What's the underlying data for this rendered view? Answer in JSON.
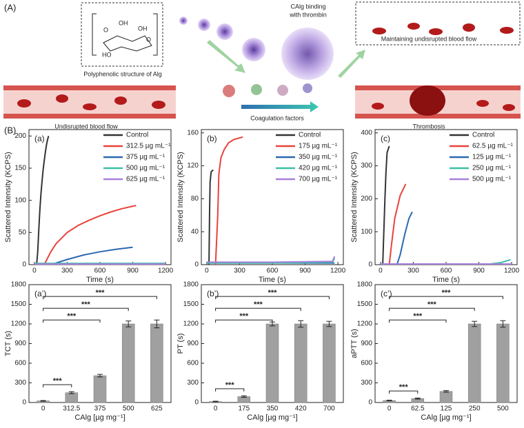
{
  "figure": {
    "panel_a": {
      "label": "(A)",
      "structure_atoms": [
        "O",
        "OH",
        "OH",
        "HO",
        "O"
      ],
      "structure_caption": "Polyphenolic structure of Alg",
      "left_vessel_caption": "Undisrupted blood flow",
      "binding_caption": [
        "CAlg binding",
        "with thrombin"
      ],
      "maintaining_caption": "Maintaining undisrupted blood flow",
      "coagulation_caption": "Coagulation factors",
      "thrombosis_caption": "Thrombosis"
    },
    "panel_b_label": "(B)"
  },
  "chart_data": [
    {
      "type": "line",
      "panel_label": "(a)",
      "x_label": "Time (s)",
      "y_label": "Scattered Intensity (KCPS)",
      "xlim": [
        -50,
        1250
      ],
      "xticks": [
        0,
        300,
        600,
        900,
        1200
      ],
      "ylim": [
        0,
        210
      ],
      "yticks": [
        0,
        50,
        100,
        150,
        200
      ],
      "legend": "upper right",
      "series": [
        {
          "name": "Control",
          "color": "#333333",
          "x": [
            20,
            30,
            40,
            50,
            60,
            70,
            80,
            90,
            100,
            110,
            120,
            130
          ],
          "values": [
            0,
            20,
            55,
            85,
            110,
            130,
            148,
            162,
            175,
            186,
            194,
            200
          ]
        },
        {
          "name": "312.5 µg mL⁻¹",
          "color": "#e8423a",
          "x": [
            90,
            120,
            150,
            200,
            300,
            400,
            500,
            600,
            700,
            800,
            930
          ],
          "values": [
            0,
            10,
            20,
            33,
            50,
            61,
            69,
            76,
            82,
            87,
            92
          ]
        },
        {
          "name": "375 µg mL⁻¹",
          "color": "#2a68b0",
          "x": [
            150,
            300,
            450,
            600,
            750,
            900
          ],
          "values": [
            0,
            8,
            15,
            20,
            24,
            27
          ]
        },
        {
          "name": "500 µg mL⁻¹",
          "color": "#3cbfa7",
          "x": [
            0,
            600,
            1200
          ],
          "values": [
            2,
            2,
            2
          ]
        },
        {
          "name": "625 µg mL⁻¹",
          "color": "#a77fdb",
          "x": [
            0,
            600,
            1200
          ],
          "values": [
            1,
            1,
            1
          ]
        }
      ]
    },
    {
      "type": "line",
      "panel_label": "(b)",
      "x_label": "Time (s)",
      "y_label": "Scattered Intensity (KCPS)",
      "xlim": [
        -50,
        1250
      ],
      "xticks": [
        0,
        300,
        600,
        900,
        1200
      ],
      "ylim": [
        0,
        164
      ],
      "yticks": [
        0,
        40,
        80,
        120,
        160
      ],
      "legend": "upper right",
      "series": [
        {
          "name": "Control",
          "color": "#333333",
          "x": [
            20,
            25,
            30,
            40,
            60
          ],
          "values": [
            0,
            60,
            100,
            113,
            115
          ]
        },
        {
          "name": "175 µg mL⁻¹",
          "color": "#e8423a",
          "x": [
            80,
            100,
            110,
            130,
            160,
            200,
            250,
            330
          ],
          "values": [
            0,
            60,
            110,
            130,
            140,
            148,
            152,
            155
          ]
        },
        {
          "name": "350 µg mL⁻¹",
          "color": "#2a68b0",
          "x": [
            0,
            600,
            1170
          ],
          "values": [
            2,
            2,
            2
          ]
        },
        {
          "name": "420 µg mL⁻¹",
          "color": "#3cbfa7",
          "x": [
            0,
            600,
            1150,
            1170
          ],
          "values": [
            2,
            2,
            3,
            8
          ]
        },
        {
          "name": "700 µg mL⁻¹",
          "color": "#a77fdb",
          "x": [
            0,
            600,
            1150,
            1170
          ],
          "values": [
            3,
            3,
            4,
            10
          ]
        }
      ]
    },
    {
      "type": "line",
      "panel_label": "(c)",
      "x_label": "Time (s)",
      "y_label": "Scattered Intensity (KCPS)",
      "xlim": [
        -50,
        1250
      ],
      "xticks": [
        0,
        300,
        600,
        900,
        1200
      ],
      "ylim": [
        0,
        410
      ],
      "yticks": [
        0,
        100,
        200,
        300,
        400
      ],
      "legend": "upper right",
      "series": [
        {
          "name": "Control",
          "color": "#333333",
          "x": [
            20,
            30,
            40,
            50,
            60,
            80
          ],
          "values": [
            0,
            100,
            200,
            280,
            340,
            360
          ]
        },
        {
          "name": "62.5 µg mL⁻¹",
          "color": "#e8423a",
          "x": [
            80,
            100,
            130,
            180,
            230
          ],
          "values": [
            0,
            60,
            140,
            210,
            245
          ]
        },
        {
          "name": "125 µg mL⁻¹",
          "color": "#2a68b0",
          "x": [
            150,
            180,
            220,
            260,
            290
          ],
          "values": [
            0,
            30,
            90,
            140,
            160
          ]
        },
        {
          "name": "250 µg mL⁻¹",
          "color": "#3cbfa7",
          "x": [
            0,
            1000,
            1100,
            1190
          ],
          "values": [
            2,
            2,
            6,
            15
          ]
        },
        {
          "name": "500 µg mL⁻¹",
          "color": "#a77fdb",
          "x": [
            0,
            600,
            1200
          ],
          "values": [
            2,
            2,
            2
          ]
        }
      ]
    },
    {
      "type": "bar",
      "panel_label": "(a’)",
      "x_label": "CAlg [µg mg⁻¹]",
      "y_label": "TCT (s)",
      "color": "#a0a0a0",
      "categories": [
        "0",
        "312.5",
        "375",
        "500",
        "625"
      ],
      "values": [
        25,
        150,
        410,
        1200,
        1200
      ],
      "errors": [
        5,
        15,
        20,
        45,
        60
      ],
      "ylim": [
        0,
        1800
      ],
      "yticks": [
        0,
        300,
        600,
        900,
        1200,
        1500,
        1800
      ],
      "significance": [
        {
          "from": 0,
          "to": 1,
          "label": "***"
        },
        {
          "from": 0,
          "to": 2,
          "label": "***"
        },
        {
          "from": 0,
          "to": 3,
          "label": "***"
        },
        {
          "from": 0,
          "to": 4,
          "label": "***"
        }
      ]
    },
    {
      "type": "bar",
      "panel_label": "(b’)",
      "x_label": "CAlg [µg mg⁻¹]",
      "y_label": "PT (s)",
      "color": "#a0a0a0",
      "categories": [
        "0",
        "175",
        "350",
        "420",
        "700"
      ],
      "values": [
        15,
        90,
        1200,
        1200,
        1200
      ],
      "errors": [
        5,
        12,
        30,
        50,
        40
      ],
      "ylim": [
        0,
        1800
      ],
      "yticks": [
        0,
        300,
        600,
        900,
        1200,
        1500,
        1800
      ],
      "significance": [
        {
          "from": 0,
          "to": 1,
          "label": "***"
        },
        {
          "from": 0,
          "to": 2,
          "label": "***"
        },
        {
          "from": 0,
          "to": 3,
          "label": "***"
        },
        {
          "from": 0,
          "to": 4,
          "label": "***"
        }
      ]
    },
    {
      "type": "bar",
      "panel_label": "(c’)",
      "x_label": "CAlg [µg mg⁻¹]",
      "y_label": "aPTT (s)",
      "color": "#a0a0a0",
      "categories": [
        "0",
        "62.5",
        "125",
        "250",
        "500"
      ],
      "values": [
        30,
        60,
        170,
        1200,
        1200
      ],
      "errors": [
        5,
        8,
        12,
        40,
        50
      ],
      "ylim": [
        0,
        1800
      ],
      "yticks": [
        0,
        300,
        600,
        900,
        1200,
        1500,
        1800
      ],
      "significance": [
        {
          "from": 0,
          "to": 1,
          "label": "***"
        },
        {
          "from": 0,
          "to": 2,
          "label": "***"
        },
        {
          "from": 0,
          "to": 3,
          "label": "***"
        },
        {
          "from": 0,
          "to": 4,
          "label": "***"
        }
      ]
    }
  ]
}
